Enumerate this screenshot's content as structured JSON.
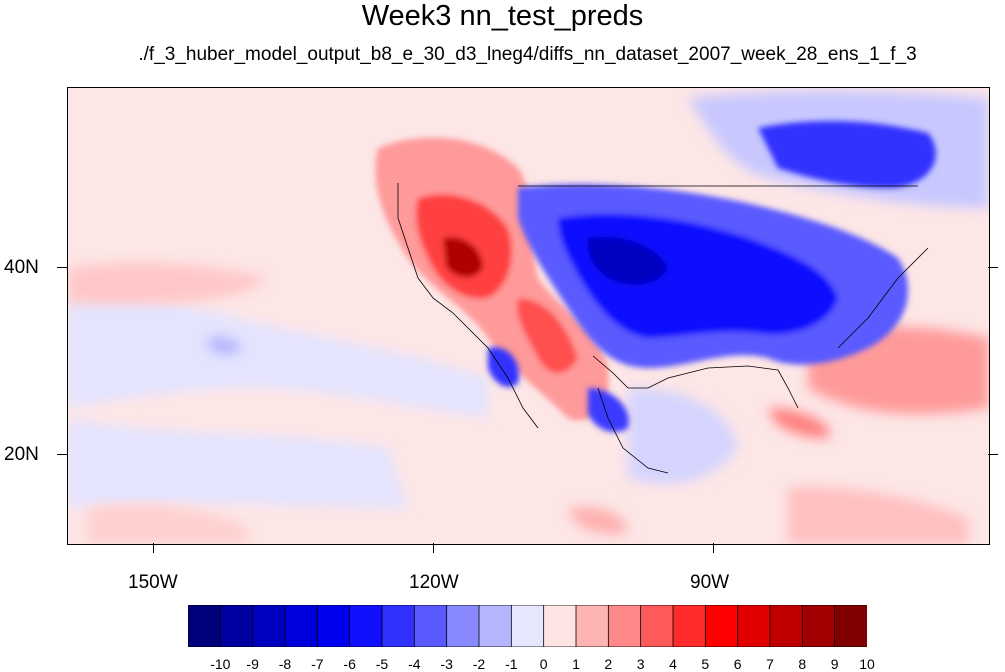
{
  "title": "Week3 nn_test_preds",
  "subtitle": "./f_3_huber_model_output_b8_e_30_d3_lneg4/diffs_nn_dataset_2007_week_28_ens_1_f_3",
  "axes": {
    "x_labels": [
      "150W",
      "120W",
      "90W"
    ],
    "y_labels": [
      "40N",
      "20N"
    ]
  },
  "colorbar": {
    "labels": [
      "-10",
      "-9",
      "-8",
      "-7",
      "-6",
      "-5",
      "-4",
      "-3",
      "-2",
      "-1",
      "0",
      "1",
      "2",
      "3",
      "4",
      "5",
      "6",
      "7",
      "8",
      "9",
      "10"
    ],
    "colors": [
      "#00007a",
      "#0000a0",
      "#0000c0",
      "#0000dc",
      "#0000f0",
      "#1010ff",
      "#3030ff",
      "#5a5aff",
      "#8888ff",
      "#b4b4ff",
      "#e6e6ff",
      "#ffe4e4",
      "#ffb4b4",
      "#ff8888",
      "#ff5a5a",
      "#ff2a2a",
      "#ff0000",
      "#e00000",
      "#c00000",
      "#a00000",
      "#800000"
    ]
  },
  "colors": {
    "background": "#fde6e6",
    "strong_blue": "#0000e0",
    "strong_red": "#e00000",
    "coastline": "#000000"
  }
}
